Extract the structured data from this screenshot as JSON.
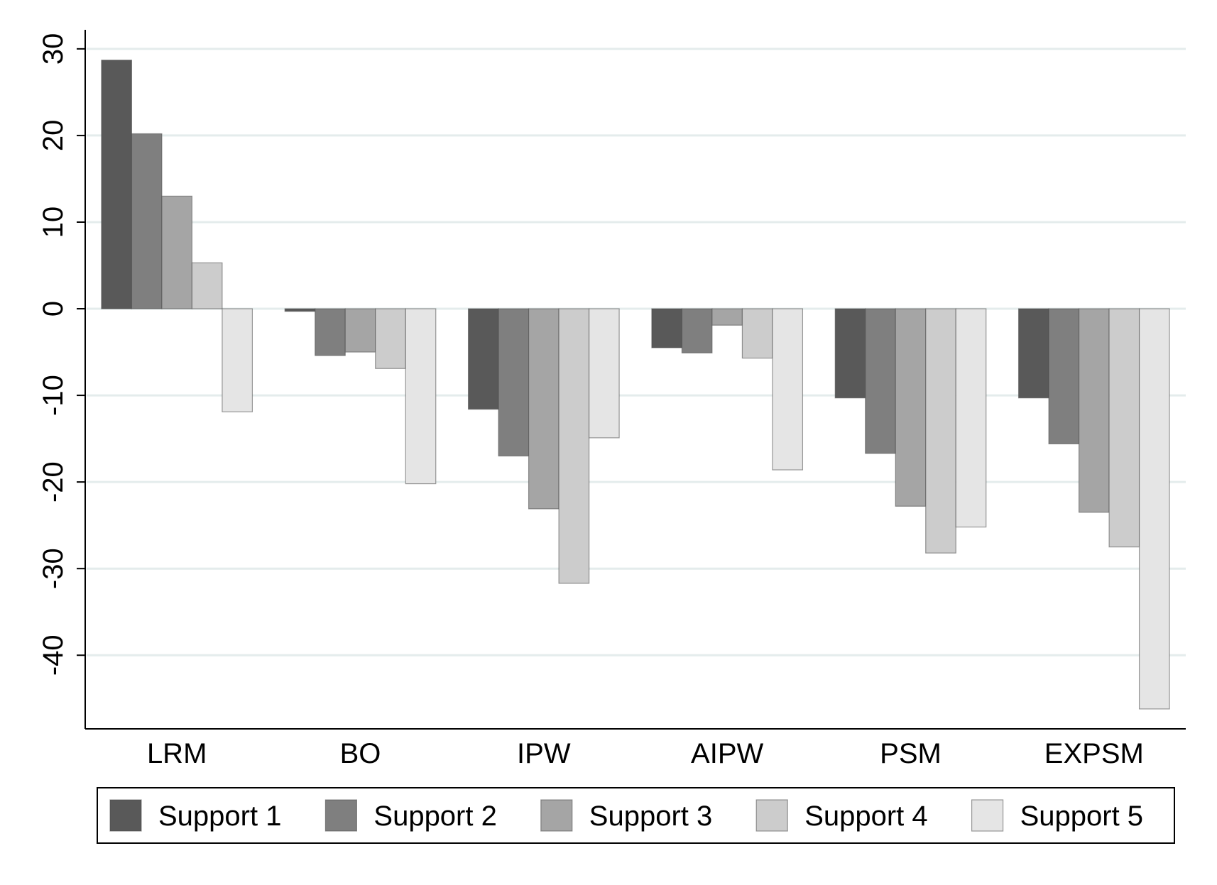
{
  "chart_data": {
    "type": "bar",
    "categories": [
      "LRM",
      "BO",
      "IPW",
      "AIPW",
      "PSM",
      "EXPSM"
    ],
    "series": [
      {
        "name": "Support 1",
        "color": "#595959",
        "values": [
          28.7,
          -0.3,
          -11.6,
          -4.5,
          -10.3,
          -10.3
        ]
      },
      {
        "name": "Support 2",
        "color": "#7f7f7f",
        "values": [
          20.2,
          -5.4,
          -17.0,
          -5.1,
          -16.7,
          -15.6
        ]
      },
      {
        "name": "Support 3",
        "color": "#a5a5a5",
        "values": [
          13.0,
          -5.0,
          -23.1,
          -1.9,
          -22.8,
          -23.5
        ]
      },
      {
        "name": "Support 4",
        "color": "#cccccc",
        "values": [
          5.3,
          -6.9,
          -31.7,
          -5.7,
          -28.2,
          -27.5
        ]
      },
      {
        "name": "Support 5",
        "color": "#e5e5e5",
        "values": [
          -11.9,
          -20.2,
          -14.9,
          -18.6,
          -25.2,
          -46.2
        ]
      }
    ],
    "yticks": [
      30,
      20,
      10,
      0,
      -10,
      -20,
      -30,
      -40
    ],
    "ylim": [
      -48.5,
      32.2
    ],
    "grid": true,
    "legend_position": "bottom"
  }
}
